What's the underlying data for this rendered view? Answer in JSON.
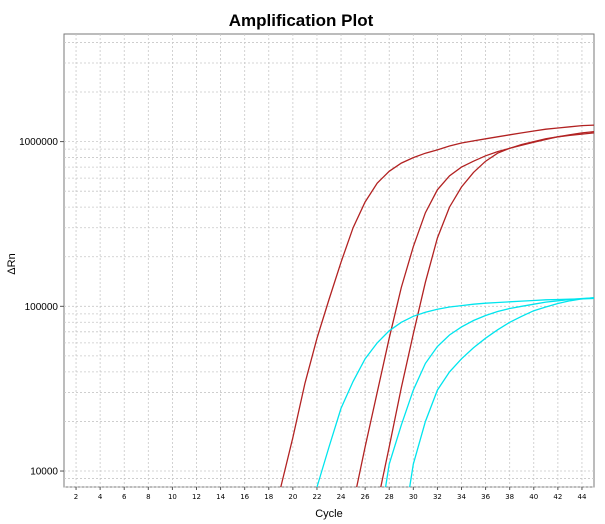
{
  "chart_data": {
    "type": "line",
    "title": "Amplification Plot",
    "xlabel": "Cycle",
    "ylabel": "ΔRn",
    "xlim": [
      1,
      45
    ],
    "ylim": [
      8000,
      4500000
    ],
    "yscale": "log",
    "grid": true,
    "x_ticks": [
      2,
      4,
      6,
      8,
      10,
      12,
      14,
      16,
      18,
      20,
      22,
      24,
      26,
      28,
      30,
      32,
      34,
      36,
      38,
      40,
      42,
      44
    ],
    "y_ticks": [
      10000,
      100000,
      1000000
    ],
    "y_tick_labels": [
      "10000",
      "100000",
      "1000000"
    ],
    "series": [
      {
        "color": "#b22222",
        "x": [
          19.0,
          20,
          21,
          22,
          23,
          24,
          25,
          26,
          27,
          28,
          29,
          30,
          31,
          32,
          33,
          34,
          35,
          36,
          37,
          38,
          39,
          40,
          41,
          42,
          43,
          44,
          45
        ],
        "y": [
          8000,
          16000,
          34000,
          64000,
          110000,
          185000,
          300000,
          430000,
          560000,
          660000,
          740000,
          800000,
          850000,
          890000,
          940000,
          980000,
          1010000,
          1040000,
          1070000,
          1100000,
          1130000,
          1160000,
          1190000,
          1210000,
          1230000,
          1250000,
          1260000
        ]
      },
      {
        "color": "#b22222",
        "x": [
          25.3,
          26,
          27,
          28,
          29,
          30,
          31,
          32,
          33,
          34,
          35,
          36,
          37,
          38,
          39,
          40,
          41,
          42,
          43,
          44,
          45
        ],
        "y": [
          8000,
          14000,
          30000,
          64000,
          130000,
          230000,
          370000,
          510000,
          620000,
          700000,
          760000,
          820000,
          870000,
          910000,
          950000,
          990000,
          1030000,
          1070000,
          1100000,
          1130000,
          1150000
        ]
      },
      {
        "color": "#b22222",
        "x": [
          27.3,
          28,
          29,
          30,
          31,
          32,
          33,
          34,
          35,
          36,
          37,
          38,
          39,
          40,
          41,
          42,
          43,
          44,
          45
        ],
        "y": [
          8000,
          14000,
          32000,
          68000,
          140000,
          260000,
          400000,
          530000,
          650000,
          760000,
          850000,
          910000,
          960000,
          1000000,
          1040000,
          1070000,
          1090000,
          1110000,
          1130000
        ]
      },
      {
        "color": "#00e5ee",
        "x": [
          22.0,
          23,
          24,
          25,
          26,
          27,
          28,
          29,
          30,
          31,
          32,
          33,
          34,
          35,
          36,
          37,
          38,
          39,
          40,
          41,
          42,
          43,
          44,
          45
        ],
        "y": [
          8000,
          14000,
          24000,
          35000,
          48000,
          60000,
          71000,
          80000,
          87000,
          92000,
          96000,
          99000,
          101000,
          103000,
          104500,
          105500,
          106500,
          107500,
          108500,
          109500,
          110000,
          110500,
          111000,
          111500
        ]
      },
      {
        "color": "#00e5ee",
        "x": [
          27.7,
          28,
          29,
          30,
          31,
          32,
          33,
          34,
          35,
          36,
          37,
          38,
          39,
          40,
          41,
          42,
          43,
          44,
          45
        ],
        "y": [
          8000,
          11000,
          19000,
          31000,
          45000,
          57000,
          67000,
          75000,
          82000,
          88000,
          93000,
          97000,
          100000,
          103000,
          106000,
          108000,
          110000,
          111500,
          112500
        ]
      },
      {
        "color": "#00e5ee",
        "x": [
          29.7,
          30,
          31,
          32,
          33,
          34,
          35,
          36,
          37,
          38,
          39,
          40,
          41,
          42,
          43,
          44,
          45
        ],
        "y": [
          8000,
          11000,
          20000,
          31000,
          40000,
          48000,
          56000,
          64000,
          72000,
          80000,
          87000,
          94000,
          99000,
          104000,
          108000,
          111000,
          113000
        ]
      }
    ]
  }
}
